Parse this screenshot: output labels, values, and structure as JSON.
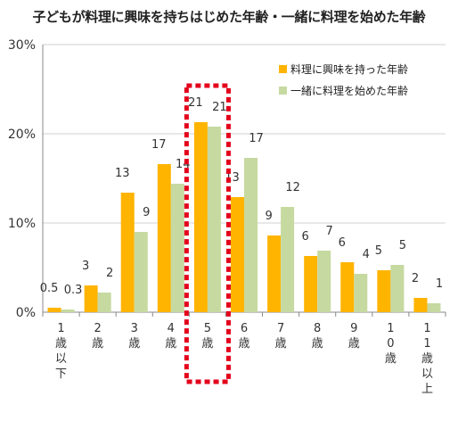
{
  "chart_data": {
    "type": "bar",
    "title": "子どもが料理に興味を持ちはじめた年齢・一緒に料理を始めた年齢",
    "xlabel": "",
    "ylabel": "",
    "ylim": [
      0,
      30
    ],
    "y_ticks": [
      "0%",
      "10%",
      "20%",
      "30%"
    ],
    "categories": [
      "1歳以下",
      "2歳",
      "3歳",
      "4歳",
      "5歳",
      "6歳",
      "7歳",
      "8歳",
      "9歳",
      "10歳",
      "11歳以上"
    ],
    "series": [
      {
        "name": "料理に興味を持った年齢",
        "color": "#FFB400",
        "values": [
          0.5,
          3,
          13.4,
          16.6,
          21.3,
          12.9,
          8.6,
          6.3,
          5.6,
          4.7,
          1.6
        ],
        "labels": [
          "0.5",
          "3",
          "13",
          "17",
          "21",
          "13",
          "9",
          "6",
          "6",
          "5",
          "2"
        ]
      },
      {
        "name": "一緒に料理を始めた年齢",
        "color": "#C6D9A0",
        "values": [
          0.3,
          2.2,
          9,
          14.4,
          20.8,
          17.3,
          11.8,
          6.9,
          4.3,
          5.3,
          1
        ],
        "labels": [
          "0.3",
          "2",
          "9",
          "14",
          "21",
          "17",
          "12",
          "7",
          "4",
          "5",
          "1"
        ]
      }
    ],
    "legend_position": "top-right",
    "grid": true,
    "highlight_category": "5歳",
    "highlight_color": "#E4001B"
  }
}
